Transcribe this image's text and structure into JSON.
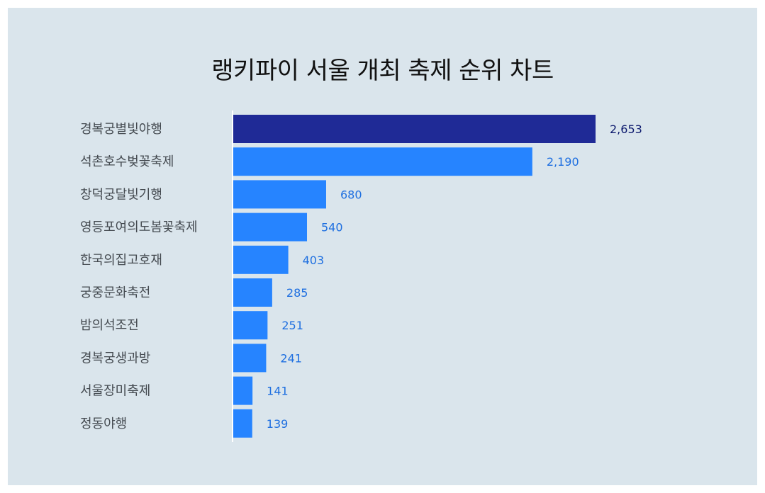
{
  "title": "랭키파이 서울 개최 축제 순위 차트",
  "colors": {
    "background": "#dae5ec",
    "bar_top": "#1f2a96",
    "bar": "#2684ff",
    "label_top": "#0d1a6e",
    "label": "#1e6fe0",
    "axis": "#ffffff"
  },
  "chart_data": {
    "type": "bar",
    "orientation": "horizontal",
    "title": "랭키파이 서울 개최 축제 순위 차트",
    "categories": [
      "경복궁별빛야행",
      "석촌호수벚꽃축제",
      "창덕궁달빛기행",
      "영등포여의도봄꽃축제",
      "한국의집고호재",
      "궁중문화축전",
      "밤의석조전",
      "경복궁생과방",
      "서울장미축제",
      "정동야행"
    ],
    "values": [
      2653,
      2190,
      680,
      540,
      403,
      285,
      251,
      241,
      141,
      139
    ],
    "value_labels": [
      "2,653",
      "2,190",
      "680",
      "540",
      "403",
      "285",
      "251",
      "241",
      "141",
      "139"
    ],
    "xlim": [
      0,
      2653
    ],
    "grid": false,
    "legend": "none"
  }
}
